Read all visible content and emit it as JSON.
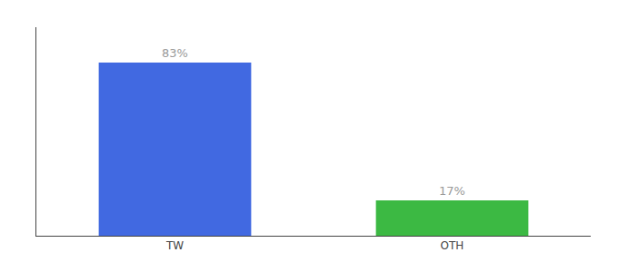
{
  "chart_data": {
    "type": "bar",
    "categories": [
      "TW",
      "OTH"
    ],
    "values": [
      83,
      17
    ],
    "value_labels": [
      "83%",
      "17%"
    ],
    "data_labels": true,
    "colors": [
      "#4169e1",
      "#3cb943"
    ],
    "ylim": [
      0,
      100
    ],
    "grid": false,
    "tick_labels": "x"
  }
}
